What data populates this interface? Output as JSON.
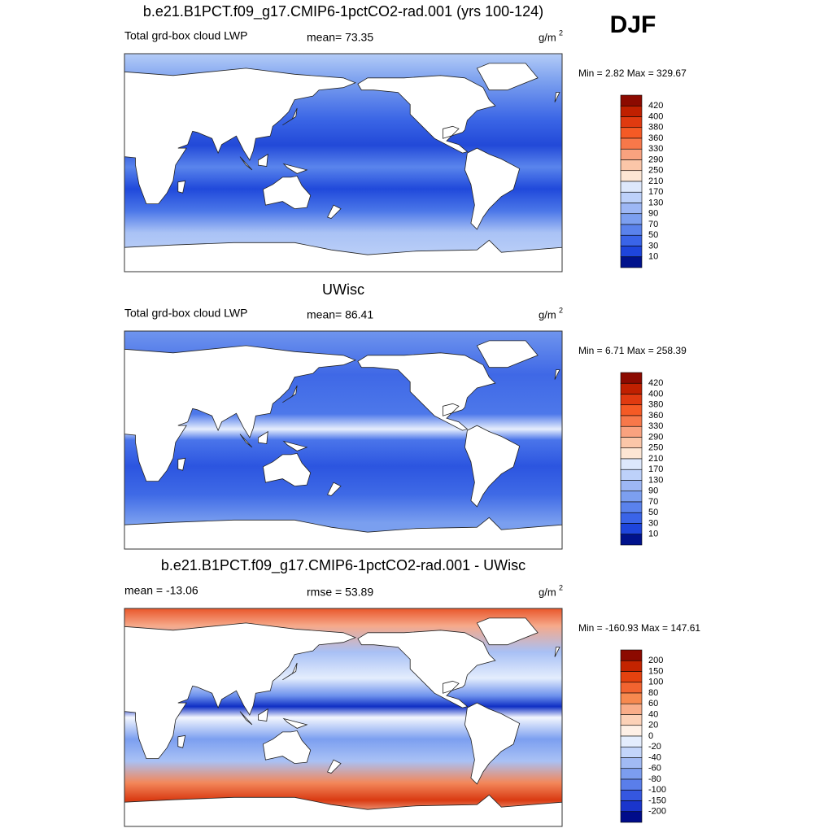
{
  "season": "DJF",
  "panels": [
    {
      "title": "b.e21.B1PCT.f09_g17.CMIP6-1pctCO2-rad.001 (yrs 100-124)",
      "left_label": "Total grd-box cloud LWP",
      "center_label": "mean=  73.35",
      "units": "g/m",
      "units_exp": "2",
      "minmax": "Min =   2.82 Max = 329.67",
      "colorbar": {
        "labels": [
          420,
          400,
          380,
          360,
          330,
          290,
          250,
          210,
          170,
          130,
          90,
          70,
          50,
          30,
          10
        ],
        "colors": [
          "#8c0a00",
          "#c02000",
          "#e03a10",
          "#f55a25",
          "#f7784a",
          "#f9a27f",
          "#fbc6a8",
          "#fde6d4",
          "#dde8fc",
          "#bdd1fa",
          "#9db7f5",
          "#7c9ff0",
          "#5a82ec",
          "#3a64e8",
          "#1e45dc",
          "#00128c"
        ]
      }
    },
    {
      "title": "UWisc",
      "left_label": "Total grd-box cloud LWP",
      "center_label": "mean=  86.41",
      "units": "g/m",
      "units_exp": "2",
      "minmax": "Min =   6.71 Max = 258.39",
      "colorbar": {
        "labels": [
          420,
          400,
          380,
          360,
          330,
          290,
          250,
          210,
          170,
          130,
          90,
          70,
          50,
          30,
          10
        ],
        "colors": [
          "#8c0a00",
          "#c02000",
          "#e03a10",
          "#f55a25",
          "#f7784a",
          "#f9a27f",
          "#fbc6a8",
          "#fde6d4",
          "#dde8fc",
          "#bdd1fa",
          "#9db7f5",
          "#7c9ff0",
          "#5a82ec",
          "#3a64e8",
          "#1e45dc",
          "#00128c"
        ]
      }
    },
    {
      "title": "b.e21.B1PCT.f09_g17.CMIP6-1pctCO2-rad.001 - UWisc",
      "left_label": "mean = -13.06",
      "center_label": "rmse =  53.89",
      "units": "g/m",
      "units_exp": "2",
      "minmax": "Min = -160.93 Max = 147.61",
      "colorbar": {
        "labels": [
          200,
          150,
          100,
          80,
          60,
          40,
          20,
          0,
          -20,
          -40,
          -60,
          -80,
          -100,
          -150,
          -200
        ],
        "colors": [
          "#8c0a00",
          "#c42400",
          "#e4420f",
          "#f26430",
          "#f7894f",
          "#f9ad89",
          "#fcd1b7",
          "#fef0e6",
          "#e4edfd",
          "#c3d5fa",
          "#a1baf4",
          "#7c9def",
          "#5a7eea",
          "#3557e0",
          "#1a35cc",
          "#000c8a"
        ]
      }
    }
  ]
}
